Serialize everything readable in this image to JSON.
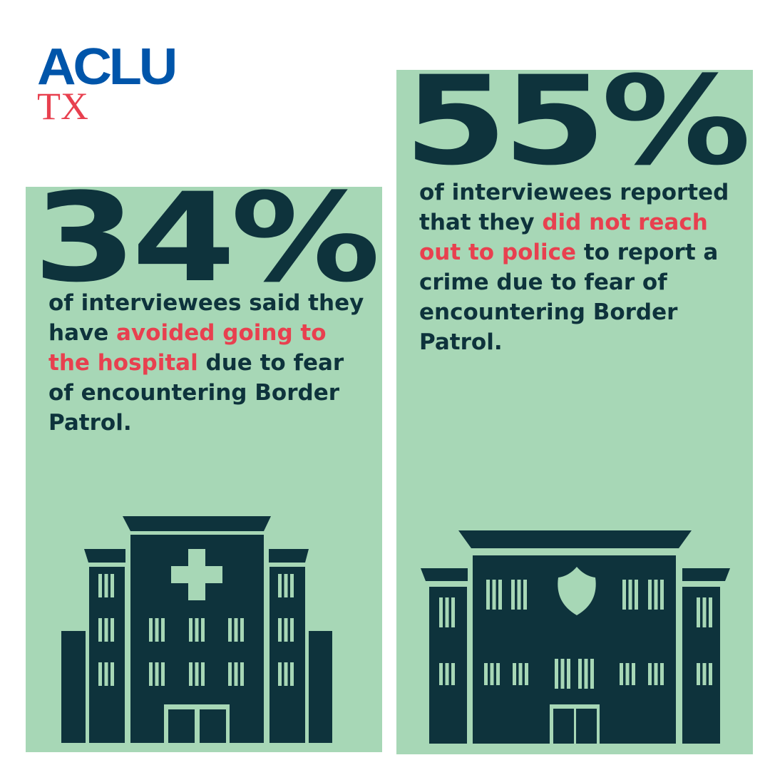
{
  "logo": {
    "name": "ACLU",
    "region": "TX"
  },
  "colors": {
    "panel": "#a7d7b6",
    "dark": "#0e333c",
    "highlight": "#e8404f",
    "brand_blue": "#0055aa"
  },
  "stats": [
    {
      "value": "34%",
      "text_before": "of interviewees said they have ",
      "highlight": "avoided going to the hospital",
      "text_after": " due to fear of encountering Border Patrol.",
      "icon": "hospital-icon"
    },
    {
      "value": "55%",
      "text_before": "of interviewees reported that they ",
      "highlight": "did not reach out to police",
      "text_after": " to report a crime due to fear of encountering Border Patrol.",
      "icon": "police-station-icon"
    }
  ]
}
